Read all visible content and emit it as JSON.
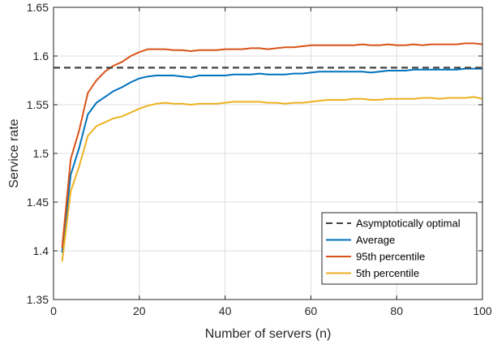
{
  "chart_data": {
    "type": "line",
    "title": "",
    "xlabel": "Number of servers (n)",
    "ylabel": "Service rate",
    "xlim": [
      0,
      100
    ],
    "ylim": [
      1.35,
      1.65
    ],
    "xticks": [
      0,
      20,
      40,
      60,
      80,
      100
    ],
    "yticks": [
      1.35,
      1.4,
      1.45,
      1.5,
      1.55,
      1.6,
      1.65
    ],
    "xtick_labels": [
      "0",
      "20",
      "40",
      "60",
      "80",
      "100"
    ],
    "ytick_labels": [
      "1.35",
      "1.4",
      "1.45",
      "1.5",
      "1.55",
      "1.6",
      "1.65"
    ],
    "grid": true,
    "legend_position": "bottom-right",
    "series": [
      {
        "name": "Asymptotically optimal",
        "color": "#404040",
        "style": "dashed",
        "x": [
          0,
          100
        ],
        "values": [
          1.588,
          1.588
        ]
      },
      {
        "name": "Average",
        "color": "#0072BD",
        "style": "solid",
        "x": [
          2,
          4,
          6,
          8,
          10,
          12,
          14,
          16,
          18,
          20,
          22,
          24,
          26,
          28,
          30,
          32,
          34,
          36,
          38,
          40,
          42,
          44,
          46,
          48,
          50,
          52,
          54,
          56,
          58,
          60,
          62,
          64,
          66,
          68,
          70,
          72,
          74,
          76,
          78,
          80,
          82,
          84,
          86,
          88,
          90,
          92,
          94,
          96,
          98,
          100
        ],
        "values": [
          1.398,
          1.478,
          1.506,
          1.54,
          1.552,
          1.558,
          1.564,
          1.568,
          1.573,
          1.577,
          1.579,
          1.58,
          1.58,
          1.58,
          1.579,
          1.578,
          1.58,
          1.58,
          1.58,
          1.58,
          1.581,
          1.581,
          1.581,
          1.582,
          1.581,
          1.581,
          1.581,
          1.582,
          1.582,
          1.583,
          1.584,
          1.584,
          1.584,
          1.584,
          1.584,
          1.584,
          1.583,
          1.584,
          1.585,
          1.585,
          1.585,
          1.586,
          1.586,
          1.586,
          1.586,
          1.586,
          1.586,
          1.587,
          1.587,
          1.587
        ]
      },
      {
        "name": "95th percentile",
        "color": "#D95319",
        "style": "solid",
        "x": [
          2,
          4,
          6,
          8,
          10,
          12,
          14,
          16,
          18,
          20,
          22,
          24,
          26,
          28,
          30,
          32,
          34,
          36,
          38,
          40,
          42,
          44,
          46,
          48,
          50,
          52,
          54,
          56,
          58,
          60,
          62,
          64,
          66,
          68,
          70,
          72,
          74,
          76,
          78,
          80,
          82,
          84,
          86,
          88,
          90,
          92,
          94,
          96,
          98,
          100
        ],
        "values": [
          1.403,
          1.494,
          1.524,
          1.562,
          1.575,
          1.584,
          1.59,
          1.594,
          1.6,
          1.604,
          1.607,
          1.607,
          1.607,
          1.606,
          1.606,
          1.605,
          1.606,
          1.606,
          1.606,
          1.607,
          1.607,
          1.607,
          1.608,
          1.608,
          1.607,
          1.608,
          1.609,
          1.609,
          1.61,
          1.611,
          1.611,
          1.611,
          1.611,
          1.611,
          1.611,
          1.612,
          1.611,
          1.611,
          1.612,
          1.611,
          1.611,
          1.612,
          1.611,
          1.612,
          1.612,
          1.612,
          1.612,
          1.613,
          1.613,
          1.612
        ]
      },
      {
        "name": "5th percentile",
        "color": "#EDB120",
        "style": "solid",
        "x": [
          2,
          4,
          6,
          8,
          10,
          12,
          14,
          16,
          18,
          20,
          22,
          24,
          26,
          28,
          30,
          32,
          34,
          36,
          38,
          40,
          42,
          44,
          46,
          48,
          50,
          52,
          54,
          56,
          58,
          60,
          62,
          64,
          66,
          68,
          70,
          72,
          74,
          76,
          78,
          80,
          82,
          84,
          86,
          88,
          90,
          92,
          94,
          96,
          98,
          100
        ],
        "values": [
          1.389,
          1.461,
          1.487,
          1.518,
          1.528,
          1.532,
          1.536,
          1.538,
          1.542,
          1.546,
          1.549,
          1.551,
          1.552,
          1.551,
          1.551,
          1.55,
          1.551,
          1.551,
          1.551,
          1.552,
          1.553,
          1.553,
          1.553,
          1.553,
          1.552,
          1.552,
          1.551,
          1.552,
          1.552,
          1.553,
          1.554,
          1.555,
          1.555,
          1.555,
          1.556,
          1.556,
          1.555,
          1.555,
          1.556,
          1.556,
          1.556,
          1.556,
          1.557,
          1.557,
          1.556,
          1.557,
          1.557,
          1.557,
          1.558,
          1.556
        ]
      }
    ]
  }
}
